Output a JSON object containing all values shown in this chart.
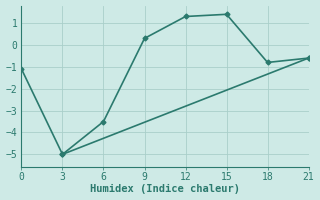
{
  "line1_x": [
    0,
    3,
    6,
    9,
    12,
    15,
    18,
    21
  ],
  "line1_y": [
    -1.1,
    -5.0,
    -3.5,
    0.3,
    1.3,
    1.4,
    -0.8,
    -0.6
  ],
  "line2_x": [
    3,
    21
  ],
  "line2_y": [
    -5.0,
    -0.6
  ],
  "line_color": "#2b7a6e",
  "background_color": "#ceeae6",
  "grid_color": "#aacfca",
  "xlabel": "Humidex (Indice chaleur)",
  "xlim": [
    0,
    21
  ],
  "ylim": [
    -5.6,
    1.8
  ],
  "xticks": [
    0,
    3,
    6,
    9,
    12,
    15,
    18,
    21
  ],
  "yticks": [
    -5,
    -4,
    -3,
    -2,
    -1,
    0,
    1
  ],
  "marker": "D",
  "markersize": 2.5,
  "linewidth": 1.2,
  "xlabel_fontsize": 7.5,
  "tick_fontsize": 7
}
